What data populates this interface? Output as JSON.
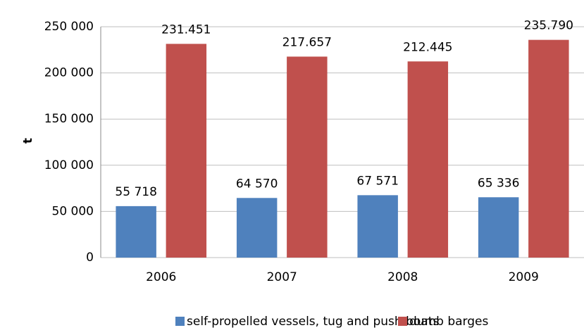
{
  "chart_data": {
    "type": "bar",
    "y_label": "t",
    "categories": [
      "2006",
      "2007",
      "2008",
      "2009"
    ],
    "series": [
      {
        "name": "self-propelled vessels, tug and push boats",
        "color": "#4f81bd",
        "values": [
          55718,
          64570,
          67571,
          65336
        ],
        "value_labels": [
          "55 718",
          "64 570",
          "67 571",
          "65 336"
        ]
      },
      {
        "name": "dumb barges",
        "color": "#c0504d",
        "values": [
          231451,
          217657,
          212445,
          235790
        ],
        "value_labels": [
          "231.451",
          "217.657",
          "212.445",
          "235.790"
        ]
      }
    ],
    "ylim": [
      0,
      250000
    ],
    "yticks": [
      0,
      {
        "value": 50000,
        "label": "50 000"
      },
      {
        "value": 100000,
        "label": "100 000"
      },
      {
        "value": 150000,
        "label": "150 000"
      },
      {
        "value": 200000,
        "label": "200 000"
      },
      {
        "value": 250000,
        "label": "250 000"
      }
    ],
    "grid": true,
    "legend": "bottom"
  }
}
